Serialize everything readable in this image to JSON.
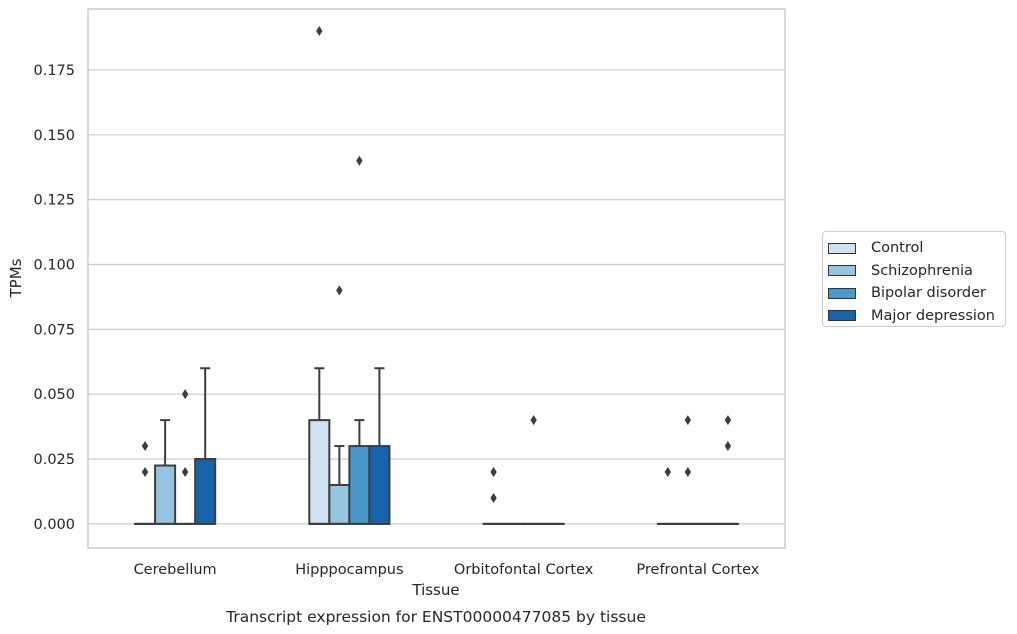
{
  "chart_data": {
    "type": "box",
    "title": "Transcript expression for ENST00000477085 by tissue",
    "xlabel": "Tissue",
    "ylabel": "TPMs",
    "ylim": [
      -0.0093,
      0.1985
    ],
    "yticks": [
      "0.000",
      "0.025",
      "0.050",
      "0.075",
      "0.100",
      "0.125",
      "0.150",
      "0.175"
    ],
    "grid": "horizontal",
    "legend_position": "right",
    "categories": [
      "Cerebellum",
      "Hipppocampus",
      "Orbitofontal Cortex",
      "Prefrontal Cortex"
    ],
    "series": [
      {
        "name": "Control",
        "color": "#d0e1f2",
        "boxes": [
          {
            "q1": 0,
            "median": 0,
            "q3": 0,
            "whislo": 0,
            "whishi": 0,
            "fliers": [
              0.02,
              0.03
            ]
          },
          {
            "q1": 0,
            "median": 0,
            "q3": 0.04,
            "whislo": 0,
            "whishi": 0.06,
            "fliers": [
              0.19
            ]
          },
          {
            "q1": 0,
            "median": 0,
            "q3": 0,
            "whislo": 0,
            "whishi": 0,
            "fliers": [
              0.01,
              0.02
            ]
          },
          {
            "q1": 0,
            "median": 0,
            "q3": 0,
            "whislo": 0,
            "whishi": 0,
            "fliers": [
              0.02
            ]
          }
        ]
      },
      {
        "name": "Schizophrenia",
        "color": "#94c4df",
        "boxes": [
          {
            "q1": 0,
            "median": 0,
            "q3": 0.0225,
            "whislo": 0,
            "whishi": 0.04,
            "fliers": []
          },
          {
            "q1": 0,
            "median": 0,
            "q3": 0.015,
            "whislo": 0,
            "whishi": 0.03,
            "fliers": [
              0.09
            ]
          },
          {
            "q1": 0,
            "median": 0,
            "q3": 0,
            "whislo": 0,
            "whishi": 0,
            "fliers": []
          },
          {
            "q1": 0,
            "median": 0,
            "q3": 0,
            "whislo": 0,
            "whishi": 0,
            "fliers": [
              0.02,
              0.04
            ]
          }
        ]
      },
      {
        "name": "Bipolar disorder",
        "color": "#4a98c9",
        "boxes": [
          {
            "q1": 0,
            "median": 0,
            "q3": 0,
            "whislo": 0,
            "whishi": 0,
            "fliers": [
              0.02,
              0.05
            ]
          },
          {
            "q1": 0,
            "median": 0,
            "q3": 0.03,
            "whislo": 0,
            "whishi": 0.04,
            "fliers": [
              0.14
            ]
          },
          {
            "q1": 0,
            "median": 0,
            "q3": 0,
            "whislo": 0,
            "whishi": 0,
            "fliers": [
              0.04
            ]
          },
          {
            "q1": 0,
            "median": 0,
            "q3": 0,
            "whislo": 0,
            "whishi": 0,
            "fliers": []
          }
        ]
      },
      {
        "name": "Major depression",
        "color": "#1764ab",
        "boxes": [
          {
            "q1": 0,
            "median": 0,
            "q3": 0.025,
            "whislo": 0,
            "whishi": 0.06,
            "fliers": []
          },
          {
            "q1": 0,
            "median": 0,
            "q3": 0.03,
            "whislo": 0,
            "whishi": 0.06,
            "fliers": []
          },
          {
            "q1": 0,
            "median": 0,
            "q3": 0,
            "whislo": 0,
            "whishi": 0,
            "fliers": []
          },
          {
            "q1": 0,
            "median": 0,
            "q3": 0,
            "whislo": 0,
            "whishi": 0,
            "fliers": [
              0.03,
              0.04
            ]
          }
        ]
      }
    ]
  }
}
